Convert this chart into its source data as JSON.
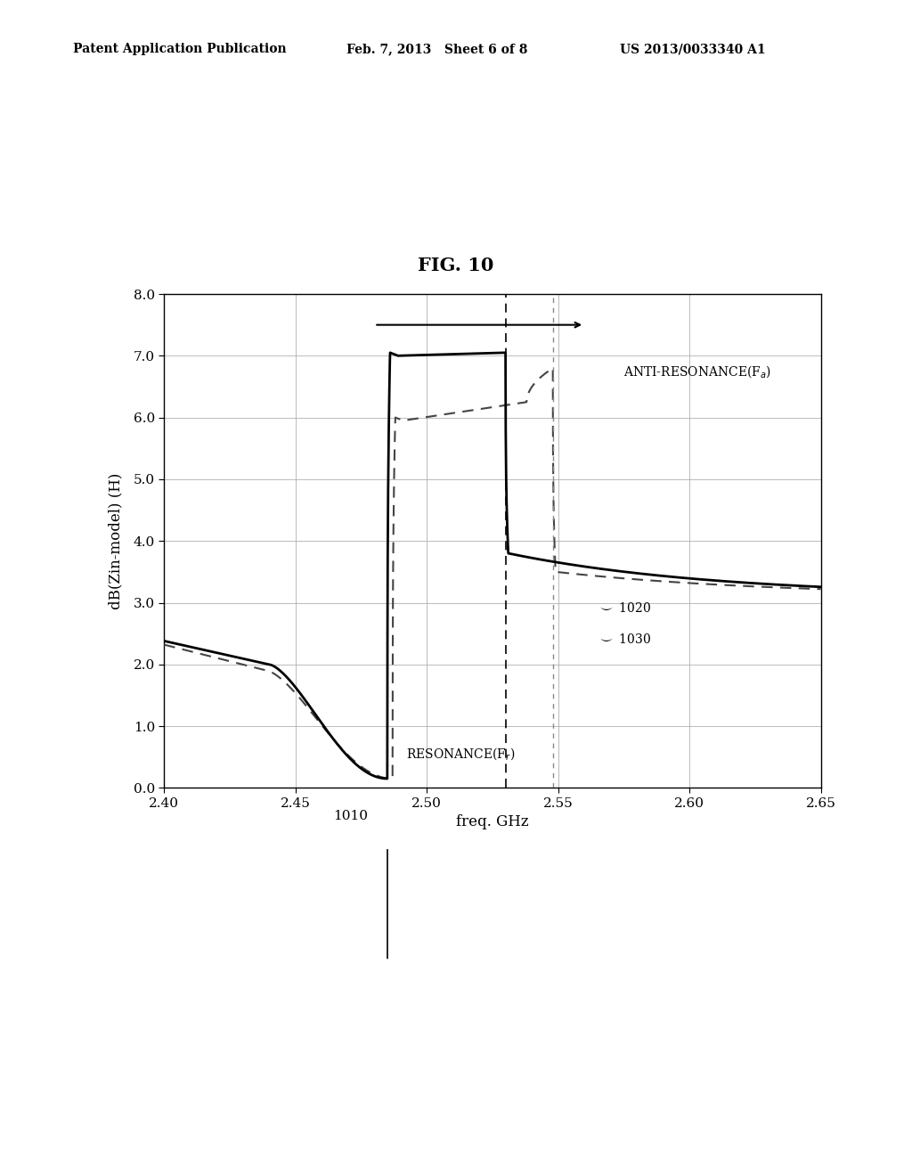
{
  "title": "FIG. 10",
  "xlabel": "freq. GHz",
  "ylabel": "dB(Zin-model) (H)",
  "xlim": [
    2.4,
    2.65
  ],
  "ylim": [
    0,
    8.0
  ],
  "xticks": [
    2.4,
    2.45,
    2.5,
    2.55,
    2.6,
    2.65
  ],
  "yticks": [
    0,
    1.0,
    2.0,
    3.0,
    4.0,
    5.0,
    6.0,
    7.0,
    8.0
  ],
  "resonance_freq": 2.485,
  "anti_resonance_freq_1020": 2.53,
  "anti_resonance_freq_1030": 2.545,
  "header_left": "Patent Application Publication",
  "header_mid": "Feb. 7, 2013   Sheet 6 of 8",
  "header_right": "US 2013/0033340 A1",
  "label_1010": "1010",
  "label_1020": "1020",
  "label_1030": "1030",
  "background_color": "#ffffff",
  "line_color_solid": "#000000",
  "line_color_dashed": "#555555"
}
